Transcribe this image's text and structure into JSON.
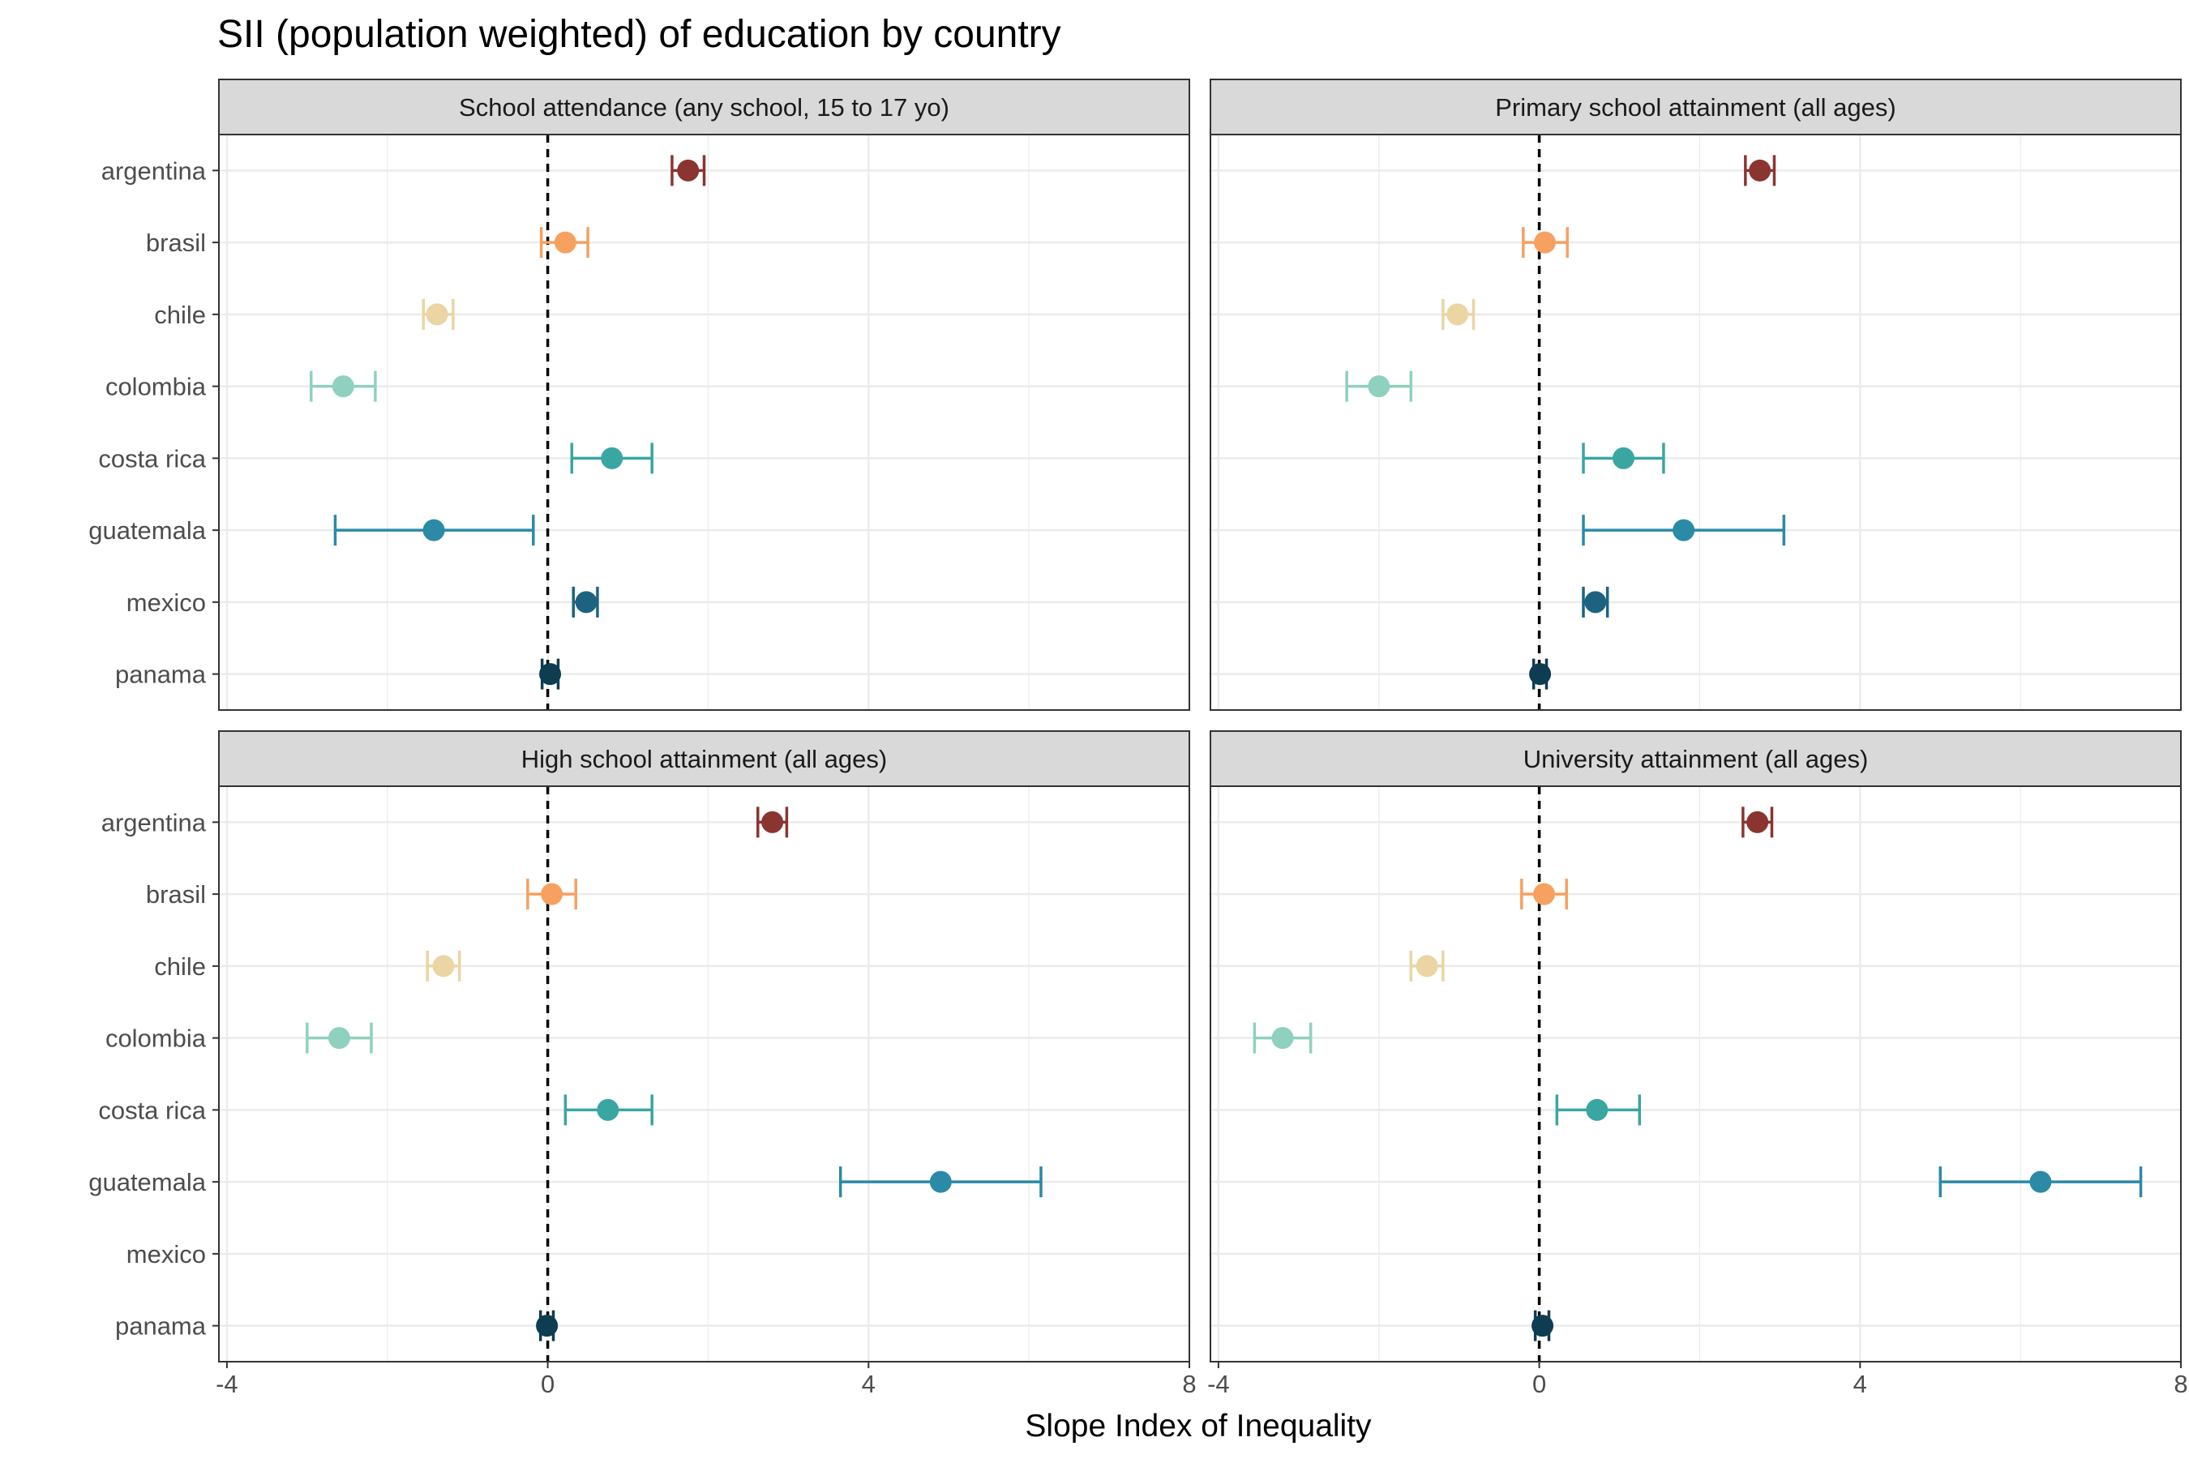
{
  "chart_data": {
    "type": "scatter",
    "title": "SII (population weighted) of education by country",
    "xlabel": "Slope Index of Inequality",
    "ylabel": "",
    "xlim": [
      -4.1,
      8.0
    ],
    "xticks": [
      -4,
      0,
      4,
      8
    ],
    "xtick_labels": [
      "-4",
      "0",
      "4",
      "8"
    ],
    "reference_line_x": 0,
    "grid": true,
    "legend": "none",
    "categories": [
      "argentina",
      "brasil",
      "chile",
      "colombia",
      "costa rica",
      "guatemala",
      "mexico",
      "panama"
    ],
    "colors": {
      "argentina": "#8b3530",
      "brasil": "#f6a160",
      "chile": "#ead5a3",
      "colombia": "#8fd0bf",
      "costa rica": "#3aa6a2",
      "guatemala": "#2b8aa6",
      "mexico": "#1d6381",
      "panama": "#0e3d51"
    },
    "facets": [
      {
        "name": "School attendance (any school, 15 to 17 yo)",
        "points": [
          {
            "country": "argentina",
            "value": 1.75,
            "low": 1.55,
            "high": 1.95
          },
          {
            "country": "brasil",
            "value": 0.22,
            "low": -0.08,
            "high": 0.5
          },
          {
            "country": "chile",
            "value": -1.38,
            "low": -1.55,
            "high": -1.18
          },
          {
            "country": "colombia",
            "value": -2.55,
            "low": -2.95,
            "high": -2.15
          },
          {
            "country": "costa rica",
            "value": 0.8,
            "low": 0.3,
            "high": 1.3
          },
          {
            "country": "guatemala",
            "value": -1.42,
            "low": -2.65,
            "high": -0.18
          },
          {
            "country": "mexico",
            "value": 0.48,
            "low": 0.32,
            "high": 0.62
          },
          {
            "country": "panama",
            "value": 0.03,
            "low": -0.07,
            "high": 0.13
          }
        ]
      },
      {
        "name": "Primary school attainment (all ages)",
        "points": [
          {
            "country": "argentina",
            "value": 2.75,
            "low": 2.57,
            "high": 2.93
          },
          {
            "country": "brasil",
            "value": 0.07,
            "low": -0.2,
            "high": 0.35
          },
          {
            "country": "chile",
            "value": -1.02,
            "low": -1.2,
            "high": -0.82
          },
          {
            "country": "colombia",
            "value": -2.0,
            "low": -2.4,
            "high": -1.6
          },
          {
            "country": "costa rica",
            "value": 1.05,
            "low": 0.55,
            "high": 1.55
          },
          {
            "country": "guatemala",
            "value": 1.8,
            "low": 0.55,
            "high": 3.05
          },
          {
            "country": "mexico",
            "value": 0.7,
            "low": 0.55,
            "high": 0.85
          },
          {
            "country": "panama",
            "value": 0.01,
            "low": -0.07,
            "high": 0.09
          }
        ]
      },
      {
        "name": "High school attainment (all ages)",
        "points": [
          {
            "country": "argentina",
            "value": 2.8,
            "low": 2.62,
            "high": 2.98
          },
          {
            "country": "brasil",
            "value": 0.05,
            "low": -0.25,
            "high": 0.35
          },
          {
            "country": "chile",
            "value": -1.3,
            "low": -1.5,
            "high": -1.1
          },
          {
            "country": "colombia",
            "value": -2.6,
            "low": -3.0,
            "high": -2.2
          },
          {
            "country": "costa rica",
            "value": 0.75,
            "low": 0.22,
            "high": 1.3
          },
          {
            "country": "guatemala",
            "value": 4.9,
            "low": 3.65,
            "high": 6.15
          },
          {
            "country": "panama",
            "value": -0.01,
            "low": -0.09,
            "high": 0.07
          }
        ]
      },
      {
        "name": "University attainment (all ages)",
        "points": [
          {
            "country": "argentina",
            "value": 2.72,
            "low": 2.54,
            "high": 2.9
          },
          {
            "country": "brasil",
            "value": 0.06,
            "low": -0.22,
            "high": 0.34
          },
          {
            "country": "chile",
            "value": -1.4,
            "low": -1.6,
            "high": -1.2
          },
          {
            "country": "colombia",
            "value": -3.2,
            "low": -3.55,
            "high": -2.85
          },
          {
            "country": "costa rica",
            "value": 0.72,
            "low": 0.22,
            "high": 1.25
          },
          {
            "country": "guatemala",
            "value": 6.25,
            "low": 5.0,
            "high": 7.5
          },
          {
            "country": "panama",
            "value": 0.04,
            "low": -0.05,
            "high": 0.12
          }
        ]
      }
    ]
  }
}
